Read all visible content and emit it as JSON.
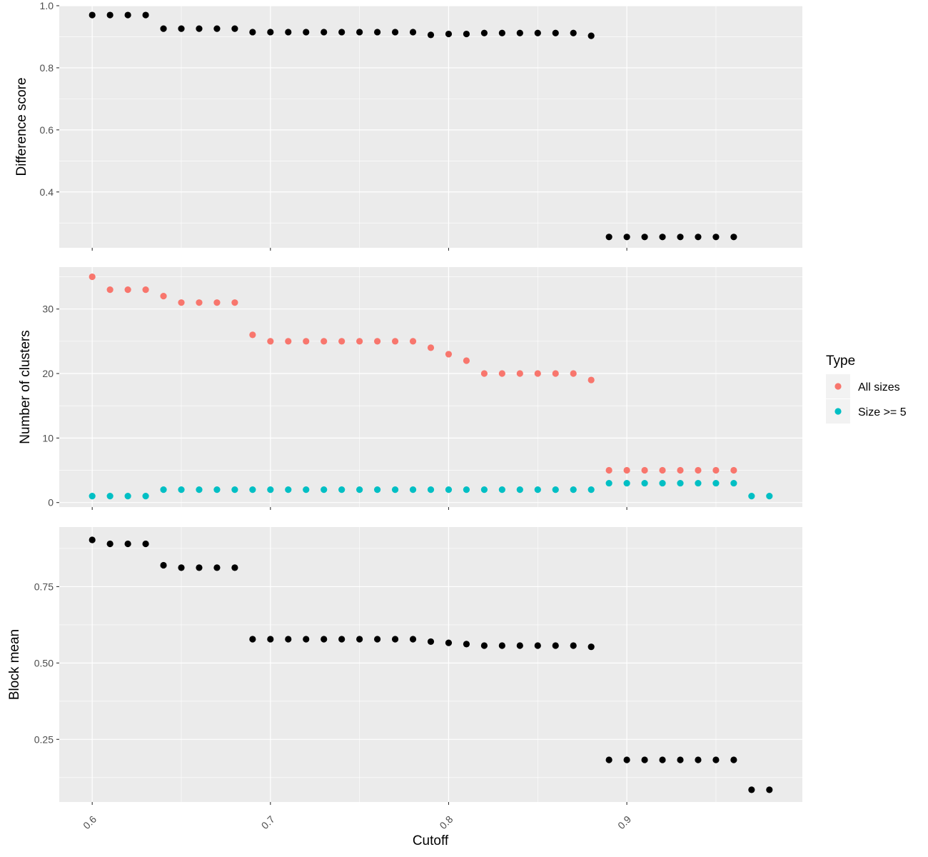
{
  "chart_data": {
    "type": "scatter",
    "xlabel": "Cutoff",
    "x_ticks": [
      "0.6",
      "0.7",
      "0.8",
      "0.9"
    ],
    "x_tick_values": [
      0.6,
      0.7,
      0.8,
      0.9
    ],
    "xlim": [
      0.5815,
      0.9985
    ],
    "grid": true,
    "legend": {
      "title": "Type",
      "position": "right",
      "entries": [
        {
          "label": "All sizes",
          "color": "#F8766D"
        },
        {
          "label": "Size >= 5",
          "color": "#00BFC4"
        }
      ]
    },
    "panels": [
      {
        "ylabel": "Difference score",
        "ylim": [
          0.22,
          1.0
        ],
        "y_ticks": [
          "0.4",
          "0.6",
          "0.8",
          "1.0"
        ],
        "y_tick_values": [
          0.4,
          0.6,
          0.8,
          1.0
        ],
        "series": [
          {
            "color": "#000000",
            "x": [
              0.6,
              0.61,
              0.62,
              0.63,
              0.64,
              0.65,
              0.66,
              0.67,
              0.68,
              0.69,
              0.7,
              0.71,
              0.72,
              0.73,
              0.74,
              0.75,
              0.76,
              0.77,
              0.78,
              0.79,
              0.8,
              0.81,
              0.82,
              0.83,
              0.84,
              0.85,
              0.86,
              0.87,
              0.88,
              0.89,
              0.9,
              0.91,
              0.92,
              0.93,
              0.94,
              0.95,
              0.96
            ],
            "y": [
              0.97,
              0.97,
              0.97,
              0.97,
              0.926,
              0.926,
              0.926,
              0.926,
              0.926,
              0.915,
              0.915,
              0.915,
              0.915,
              0.915,
              0.915,
              0.915,
              0.915,
              0.915,
              0.915,
              0.906,
              0.909,
              0.909,
              0.912,
              0.912,
              0.912,
              0.912,
              0.912,
              0.912,
              0.903,
              0.255,
              0.255,
              0.255,
              0.255,
              0.255,
              0.255,
              0.255,
              0.255
            ]
          }
        ]
      },
      {
        "ylabel": "Number of clusters",
        "ylim": [
          -0.7,
          36.5
        ],
        "y_ticks": [
          "0",
          "10",
          "20",
          "30"
        ],
        "y_tick_values": [
          0,
          10,
          20,
          30
        ],
        "series": [
          {
            "name": "All sizes",
            "color": "#F8766D",
            "x": [
              0.6,
              0.61,
              0.62,
              0.63,
              0.64,
              0.65,
              0.66,
              0.67,
              0.68,
              0.69,
              0.7,
              0.71,
              0.72,
              0.73,
              0.74,
              0.75,
              0.76,
              0.77,
              0.78,
              0.79,
              0.8,
              0.81,
              0.82,
              0.83,
              0.84,
              0.85,
              0.86,
              0.87,
              0.88,
              0.89,
              0.9,
              0.91,
              0.92,
              0.93,
              0.94,
              0.95,
              0.96
            ],
            "y": [
              35,
              33,
              33,
              33,
              32,
              31,
              31,
              31,
              31,
              26,
              25,
              25,
              25,
              25,
              25,
              25,
              25,
              25,
              25,
              24,
              23,
              22,
              20,
              20,
              20,
              20,
              20,
              20,
              19,
              5,
              5,
              5,
              5,
              5,
              5,
              5,
              5
            ]
          },
          {
            "name": "Size >= 5",
            "color": "#00BFC4",
            "x": [
              0.6,
              0.61,
              0.62,
              0.63,
              0.64,
              0.65,
              0.66,
              0.67,
              0.68,
              0.69,
              0.7,
              0.71,
              0.72,
              0.73,
              0.74,
              0.75,
              0.76,
              0.77,
              0.78,
              0.79,
              0.8,
              0.81,
              0.82,
              0.83,
              0.84,
              0.85,
              0.86,
              0.87,
              0.88,
              0.89,
              0.9,
              0.91,
              0.92,
              0.93,
              0.94,
              0.95,
              0.96,
              0.97,
              0.98
            ],
            "y": [
              1,
              1,
              1,
              1,
              2,
              2,
              2,
              2,
              2,
              2,
              2,
              2,
              2,
              2,
              2,
              2,
              2,
              2,
              2,
              2,
              2,
              2,
              2,
              2,
              2,
              2,
              2,
              2,
              2,
              3,
              3,
              3,
              3,
              3,
              3,
              3,
              3,
              1,
              1
            ]
          }
        ]
      },
      {
        "ylabel": "Block mean",
        "ylim": [
          0.045,
          0.945
        ],
        "y_ticks": [
          "0.25",
          "0.50",
          "0.75"
        ],
        "y_tick_values": [
          0.25,
          0.5,
          0.75
        ],
        "series": [
          {
            "color": "#000000",
            "x": [
              0.6,
              0.61,
              0.62,
              0.63,
              0.64,
              0.65,
              0.66,
              0.67,
              0.68,
              0.69,
              0.7,
              0.71,
              0.72,
              0.73,
              0.74,
              0.75,
              0.76,
              0.77,
              0.78,
              0.79,
              0.8,
              0.81,
              0.82,
              0.83,
              0.84,
              0.85,
              0.86,
              0.87,
              0.88,
              0.89,
              0.9,
              0.91,
              0.92,
              0.93,
              0.94,
              0.95,
              0.96,
              0.97,
              0.98
            ],
            "y": [
              0.903,
              0.89,
              0.89,
              0.89,
              0.82,
              0.812,
              0.812,
              0.812,
              0.812,
              0.578,
              0.578,
              0.578,
              0.578,
              0.578,
              0.578,
              0.578,
              0.578,
              0.578,
              0.578,
              0.57,
              0.566,
              0.562,
              0.557,
              0.557,
              0.557,
              0.557,
              0.557,
              0.557,
              0.553,
              0.183,
              0.183,
              0.183,
              0.183,
              0.183,
              0.183,
              0.183,
              0.183,
              0.085,
              0.085
            ]
          }
        ]
      }
    ]
  }
}
